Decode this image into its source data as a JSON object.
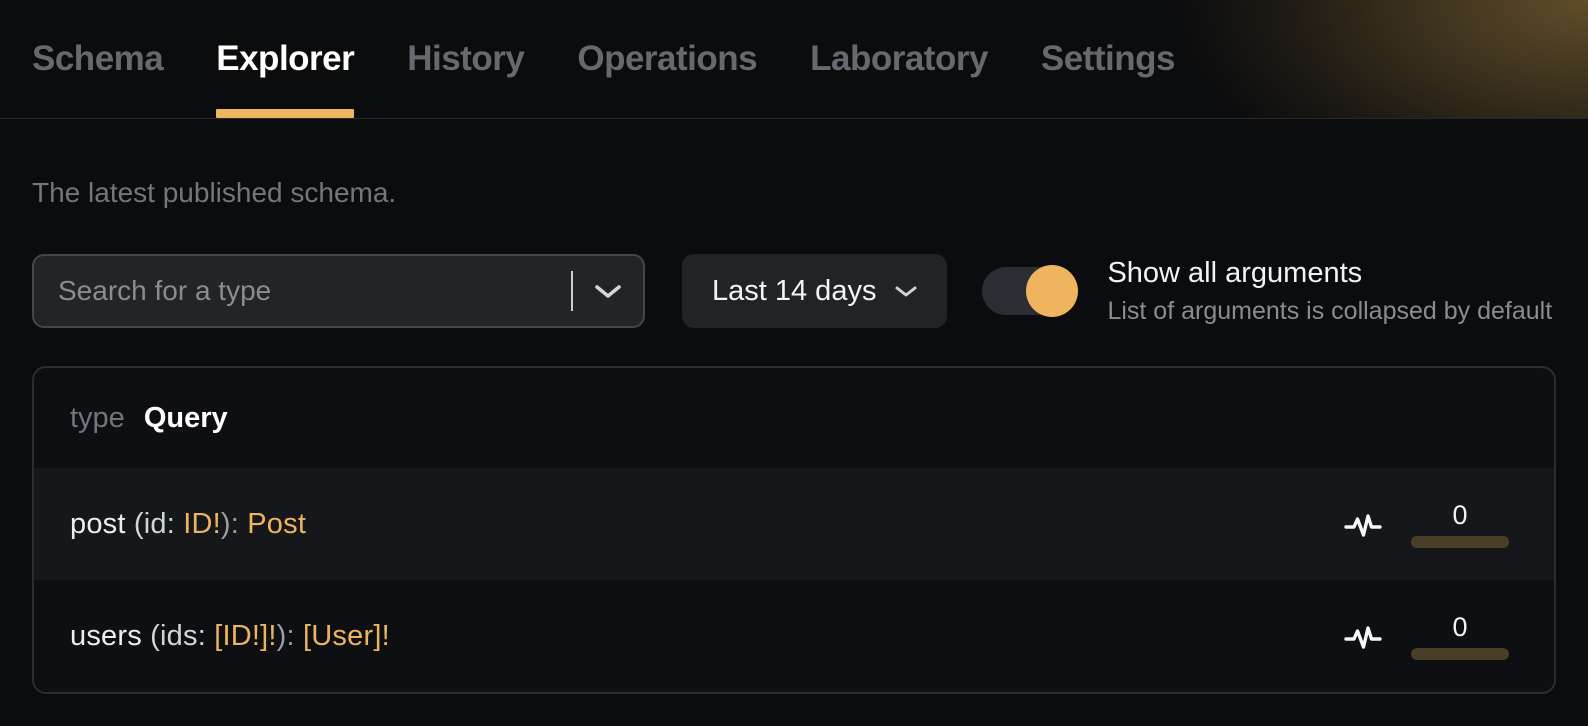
{
  "colors": {
    "accent": "#eeb45e",
    "type_text": "#edb45f",
    "usage_bar": "#493e26"
  },
  "nav": {
    "tabs": [
      {
        "label": "Schema",
        "active": false
      },
      {
        "label": "Explorer",
        "active": true
      },
      {
        "label": "History",
        "active": false
      },
      {
        "label": "Operations",
        "active": false
      },
      {
        "label": "Laboratory",
        "active": false
      },
      {
        "label": "Settings",
        "active": false
      }
    ]
  },
  "main": {
    "subtitle": "The latest published schema."
  },
  "controls": {
    "search": {
      "placeholder": "Search for a type",
      "value": ""
    },
    "time_range": {
      "value": "Last 14 days"
    },
    "arguments_toggle": {
      "state": "on",
      "label": "Show all arguments",
      "description": "List of arguments is collapsed by default"
    }
  },
  "panel": {
    "kind": "type",
    "name": "Query",
    "fields": [
      {
        "signature_parts": [
          {
            "text": "post ",
            "tone": "name"
          },
          {
            "text": "(id: ",
            "tone": "plain"
          },
          {
            "text": "ID!",
            "tone": "type"
          },
          {
            "text": "): ",
            "tone": "punct"
          },
          {
            "text": "Post",
            "tone": "type"
          }
        ],
        "usage_count": "0"
      },
      {
        "signature_parts": [
          {
            "text": "users ",
            "tone": "name"
          },
          {
            "text": "(ids: ",
            "tone": "plain"
          },
          {
            "text": "[ID!]!",
            "tone": "type"
          },
          {
            "text": "): ",
            "tone": "punct"
          },
          {
            "text": "[User]!",
            "tone": "type"
          }
        ],
        "usage_count": "0"
      }
    ]
  }
}
